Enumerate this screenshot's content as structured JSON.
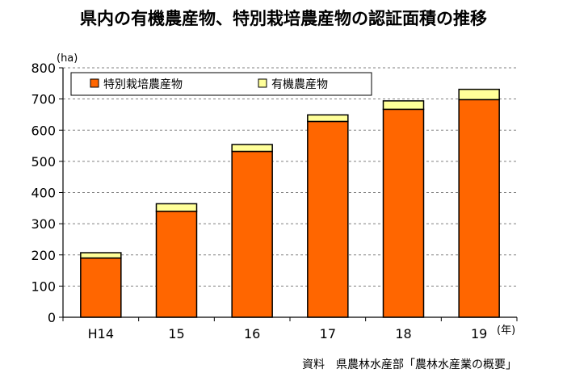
{
  "title": "県内の有機農産物、特別栽培農産物の認証面積の推移",
  "source": "資料　県農林水産部「農林水産業の概要」",
  "colors": {
    "special": "#FF6600",
    "organic": "#FFFF99",
    "grid": "#808080",
    "stroke": "#000000"
  },
  "chart_data": {
    "type": "bar",
    "stacked": true,
    "categories": [
      "H14",
      "15",
      "16",
      "17",
      "18",
      "19"
    ],
    "series": [
      {
        "name": "特別栽培農産物",
        "values": [
          190,
          340,
          532,
          628,
          667,
          698
        ]
      },
      {
        "name": "有機農産物",
        "values": [
          17,
          24,
          22,
          21,
          27,
          33
        ]
      }
    ],
    "ylim": [
      0,
      800
    ],
    "yticks": [
      0,
      100,
      200,
      300,
      400,
      500,
      600,
      700,
      800
    ],
    "yunit": "(ha)",
    "xunit": "(年)",
    "grid": true,
    "grid_style": "dashed horizontal",
    "legend_position": "top-left"
  }
}
